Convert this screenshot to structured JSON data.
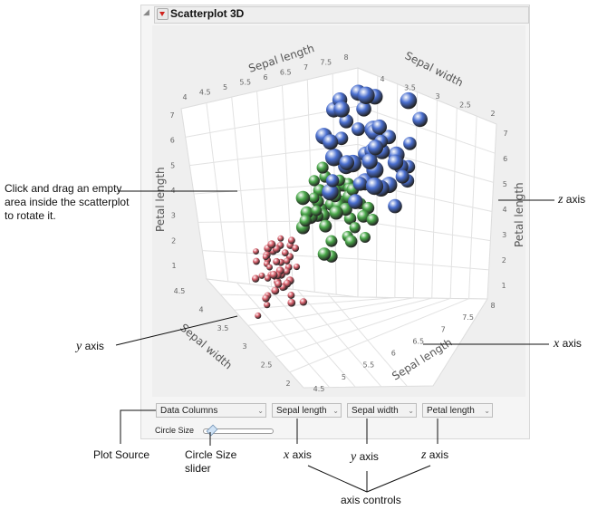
{
  "window": {
    "title": "Scatterplot 3D"
  },
  "plot": {
    "axes": {
      "x": {
        "label": "Sepal length",
        "ticks_back": [
          "4",
          "4.5",
          "5",
          "5.5",
          "6",
          "6.5",
          "7",
          "7.5",
          "8"
        ],
        "ticks_front": [
          "4.5",
          "5",
          "5.5",
          "6",
          "6.5",
          "7",
          "7.5",
          "8"
        ]
      },
      "y": {
        "label": "Sepal width",
        "ticks_back": [
          "4",
          "3.5",
          "3",
          "2.5",
          "2"
        ],
        "ticks_front": [
          "4.5",
          "4",
          "3.5",
          "3",
          "2.5",
          "2"
        ]
      },
      "z": {
        "label": "Petal length",
        "ticks": [
          "1",
          "2",
          "3",
          "4",
          "5",
          "6",
          "7"
        ]
      }
    },
    "corner_label": "4.5",
    "series_colors": {
      "setosa": "#d9606c",
      "versicolor": "#4aa84a",
      "virginica": "#4a6fd0"
    }
  },
  "controls": {
    "plot_source": "Data Columns",
    "x_column": "Sepal length",
    "y_column": "Sepal width",
    "z_column": "Petal length",
    "circle_size_label": "Circle Size",
    "circle_size_value": 0.1
  },
  "annotations": {
    "rotate_hint": "Click and drag an empty area inside the scatterplot to rotate it.",
    "y_axis": "y",
    "z_axis": "z",
    "x_axis": "x",
    "axis_word": "axis",
    "plot_source": "Plot Source",
    "circle_size_slider": "Circle Size slider",
    "axis_controls": "axis controls"
  }
}
